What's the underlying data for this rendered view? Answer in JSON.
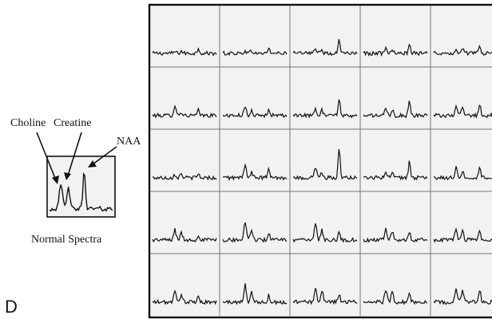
{
  "panel_letter": "D",
  "inset": {
    "caption": "Normal Spectra",
    "peak_labels": {
      "choline": "Choline",
      "creatine": "Creatine",
      "naa": "NAA"
    }
  },
  "grid": {
    "rows": 5,
    "cols": 5,
    "background": "#f2f2f2",
    "line_color": "#777777",
    "trace_color": "#111111",
    "border_color": "#111111",
    "voxels": [
      [
        {
          "choline": 0.1,
          "creatine": 0.12,
          "naa": 0.3
        },
        {
          "choline": 0.15,
          "creatine": 0.15,
          "naa": 0.3
        },
        {
          "choline": 0.2,
          "creatine": 0.2,
          "naa": 0.8
        },
        {
          "choline": 0.25,
          "creatine": 0.3,
          "naa": 0.45
        },
        {
          "choline": 0.3,
          "creatine": 0.25,
          "naa": 0.35
        }
      ],
      [
        {
          "choline": 0.6,
          "creatine": 0.2,
          "naa": 0.3
        },
        {
          "choline": 0.5,
          "creatine": 0.35,
          "naa": 0.45
        },
        {
          "choline": 0.4,
          "creatine": 0.3,
          "naa": 1.0
        },
        {
          "choline": 0.35,
          "creatine": 0.3,
          "naa": 0.9
        },
        {
          "choline": 0.45,
          "creatine": 0.4,
          "naa": 0.6
        }
      ],
      [
        {
          "choline": 0.2,
          "creatine": 0.25,
          "naa": 0.2
        },
        {
          "choline": 0.8,
          "creatine": 0.3,
          "naa": 0.5
        },
        {
          "choline": 0.55,
          "creatine": 0.3,
          "naa": 1.6
        },
        {
          "choline": 0.3,
          "creatine": 0.25,
          "naa": 0.9
        },
        {
          "choline": 0.6,
          "creatine": 0.4,
          "naa": 0.7
        }
      ],
      [
        {
          "choline": 0.6,
          "creatine": 0.4,
          "naa": 0.3
        },
        {
          "choline": 1.1,
          "creatine": 0.6,
          "naa": 0.4
        },
        {
          "choline": 1.0,
          "creatine": 0.6,
          "naa": 0.5
        },
        {
          "choline": 0.7,
          "creatine": 0.5,
          "naa": 0.4
        },
        {
          "choline": 0.6,
          "creatine": 0.55,
          "naa": 0.5
        }
      ],
      [
        {
          "choline": 0.6,
          "creatine": 0.5,
          "naa": 0.3
        },
        {
          "choline": 1.0,
          "creatine": 0.6,
          "naa": 0.4
        },
        {
          "choline": 0.9,
          "creatine": 0.7,
          "naa": 0.5
        },
        {
          "choline": 0.7,
          "creatine": 0.6,
          "naa": 0.6
        },
        {
          "choline": 0.8,
          "creatine": 0.6,
          "naa": 0.7
        }
      ]
    ]
  }
}
